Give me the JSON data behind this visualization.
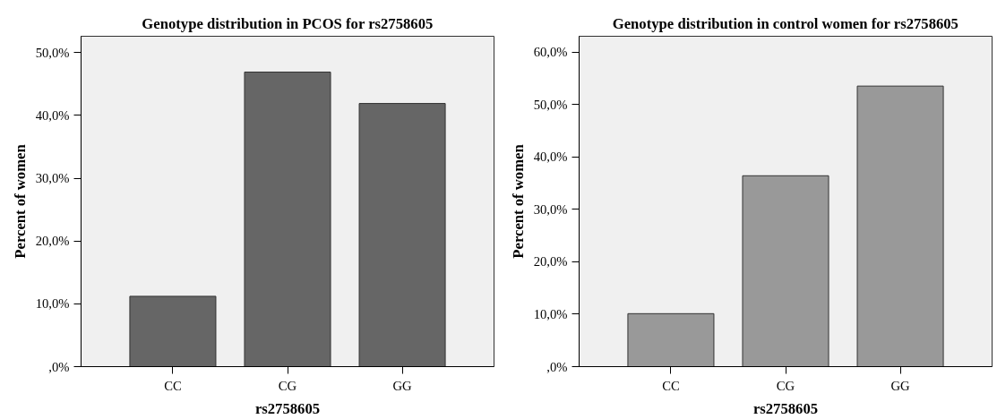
{
  "chart_data": [
    {
      "type": "bar",
      "title": "Genotype distribution in PCOS for rs2758605",
      "xlabel": "rs2758605",
      "ylabel": "Percent of women",
      "categories": [
        "CC",
        "CG",
        "GG"
      ],
      "values": [
        11.2,
        46.9,
        41.9
      ],
      "color": "#666666",
      "ylim": [
        0,
        52.6
      ],
      "yticks": [
        {
          "value": 0,
          "label": ",0%"
        },
        {
          "value": 10,
          "label": "10,0%"
        },
        {
          "value": 20,
          "label": "20,0%"
        },
        {
          "value": 30,
          "label": "30,0%"
        },
        {
          "value": 40,
          "label": "40,0%"
        },
        {
          "value": 50,
          "label": "50,0%"
        }
      ],
      "grid": false
    },
    {
      "type": "bar",
      "title": "Genotype distribution in control women for rs2758605",
      "xlabel": "rs2758605",
      "ylabel": "Percent of women",
      "categories": [
        "CC",
        "CG",
        "GG"
      ],
      "values": [
        10.1,
        36.4,
        53.5
      ],
      "color": "#999999",
      "ylim": [
        0,
        63.0
      ],
      "yticks": [
        {
          "value": 0,
          "label": ",0%"
        },
        {
          "value": 10,
          "label": "10,0%"
        },
        {
          "value": 20,
          "label": "20,0%"
        },
        {
          "value": 30,
          "label": "30,0%"
        },
        {
          "value": 40,
          "label": "40,0%"
        },
        {
          "value": 50,
          "label": "50,0%"
        },
        {
          "value": 60,
          "label": "60,0%"
        }
      ],
      "grid": false
    }
  ]
}
